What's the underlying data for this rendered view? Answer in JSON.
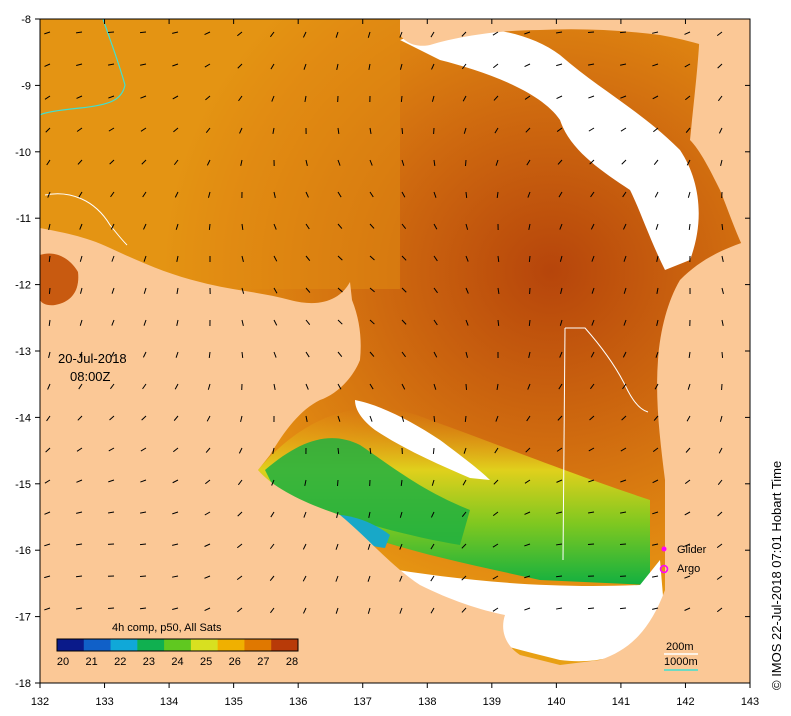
{
  "map": {
    "date": "20-Jul-2018",
    "time": "08:00Z",
    "credit": "© IMOS 22-Jul-2018 07:01 Hobart Time",
    "lon_ticks": [
      "132",
      "133",
      "134",
      "135",
      "136",
      "137",
      "138",
      "139",
      "140",
      "141",
      "142",
      "143"
    ],
    "lat_ticks": [
      "-8",
      "-9",
      "-10",
      "-11",
      "-12",
      "-13",
      "-14",
      "-15",
      "-16",
      "-17",
      "-18"
    ],
    "lon_range": [
      132,
      143
    ],
    "lat_range": [
      -18,
      -8
    ],
    "colorbar": {
      "title": "4h comp, p50, All Sats",
      "labels": [
        "20",
        "21",
        "22",
        "23",
        "24",
        "25",
        "26",
        "27",
        "28"
      ],
      "colors": [
        "#0a1a8a",
        "#1060c8",
        "#10a8d8",
        "#10b050",
        "#60c820",
        "#d8e020",
        "#f0b000",
        "#e07800",
        "#b83a08"
      ]
    },
    "legend": {
      "glider": "Glider",
      "argo": "Argo",
      "glider_color": "#ff00ff",
      "argo_color": "#ff00ff"
    },
    "contours": {
      "c200": "200m",
      "c1000": "1000m",
      "c200_color": "#ffffff",
      "c1000_color": "#40e0d0"
    },
    "colors": {
      "land": "#fbc896",
      "no_data": "#ffffff",
      "sst_warm": "#d27010",
      "sst_hot": "#b8470a",
      "sst_mid": "#e89010"
    }
  }
}
